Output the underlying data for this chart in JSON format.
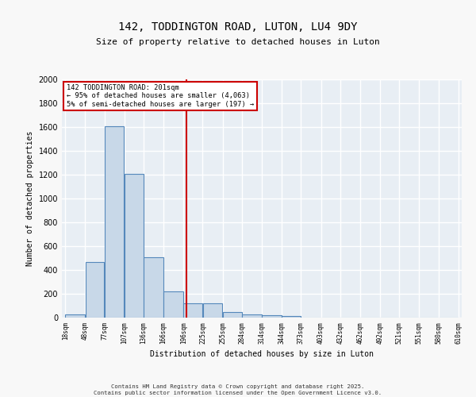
{
  "title_line1": "142, TODDINGTON ROAD, LUTON, LU4 9DY",
  "title_line2": "Size of property relative to detached houses in Luton",
  "xlabel": "Distribution of detached houses by size in Luton",
  "ylabel": "Number of detached properties",
  "bin_labels": [
    "18sqm",
    "48sqm",
    "77sqm",
    "107sqm",
    "136sqm",
    "166sqm",
    "196sqm",
    "225sqm",
    "255sqm",
    "284sqm",
    "314sqm",
    "344sqm",
    "373sqm",
    "403sqm",
    "432sqm",
    "462sqm",
    "492sqm",
    "521sqm",
    "551sqm",
    "580sqm",
    "610sqm"
  ],
  "bin_edges": [
    18,
    48,
    77,
    107,
    136,
    166,
    196,
    225,
    255,
    284,
    314,
    344,
    373,
    403,
    432,
    462,
    492,
    521,
    551,
    580,
    610
  ],
  "bar_heights": [
    30,
    470,
    1610,
    1210,
    510,
    220,
    120,
    120,
    50,
    30,
    20,
    15,
    0,
    0,
    0,
    0,
    0,
    0,
    0,
    0
  ],
  "bar_color": "#c8d8e8",
  "bar_edge_color": "#5588bb",
  "bg_color": "#e8eef4",
  "grid_color": "#ffffff",
  "vline_x": 201,
  "vline_color": "#cc0000",
  "annotation_text": "142 TODDINGTON ROAD: 201sqm\n← 95% of detached houses are smaller (4,063)\n5% of semi-detached houses are larger (197) →",
  "annotation_box_color": "#cc0000",
  "ylim": [
    0,
    2000
  ],
  "yticks": [
    0,
    200,
    400,
    600,
    800,
    1000,
    1200,
    1400,
    1600,
    1800,
    2000
  ],
  "footer_line1": "Contains HM Land Registry data © Crown copyright and database right 2025.",
  "footer_line2": "Contains public sector information licensed under the Open Government Licence v3.0."
}
